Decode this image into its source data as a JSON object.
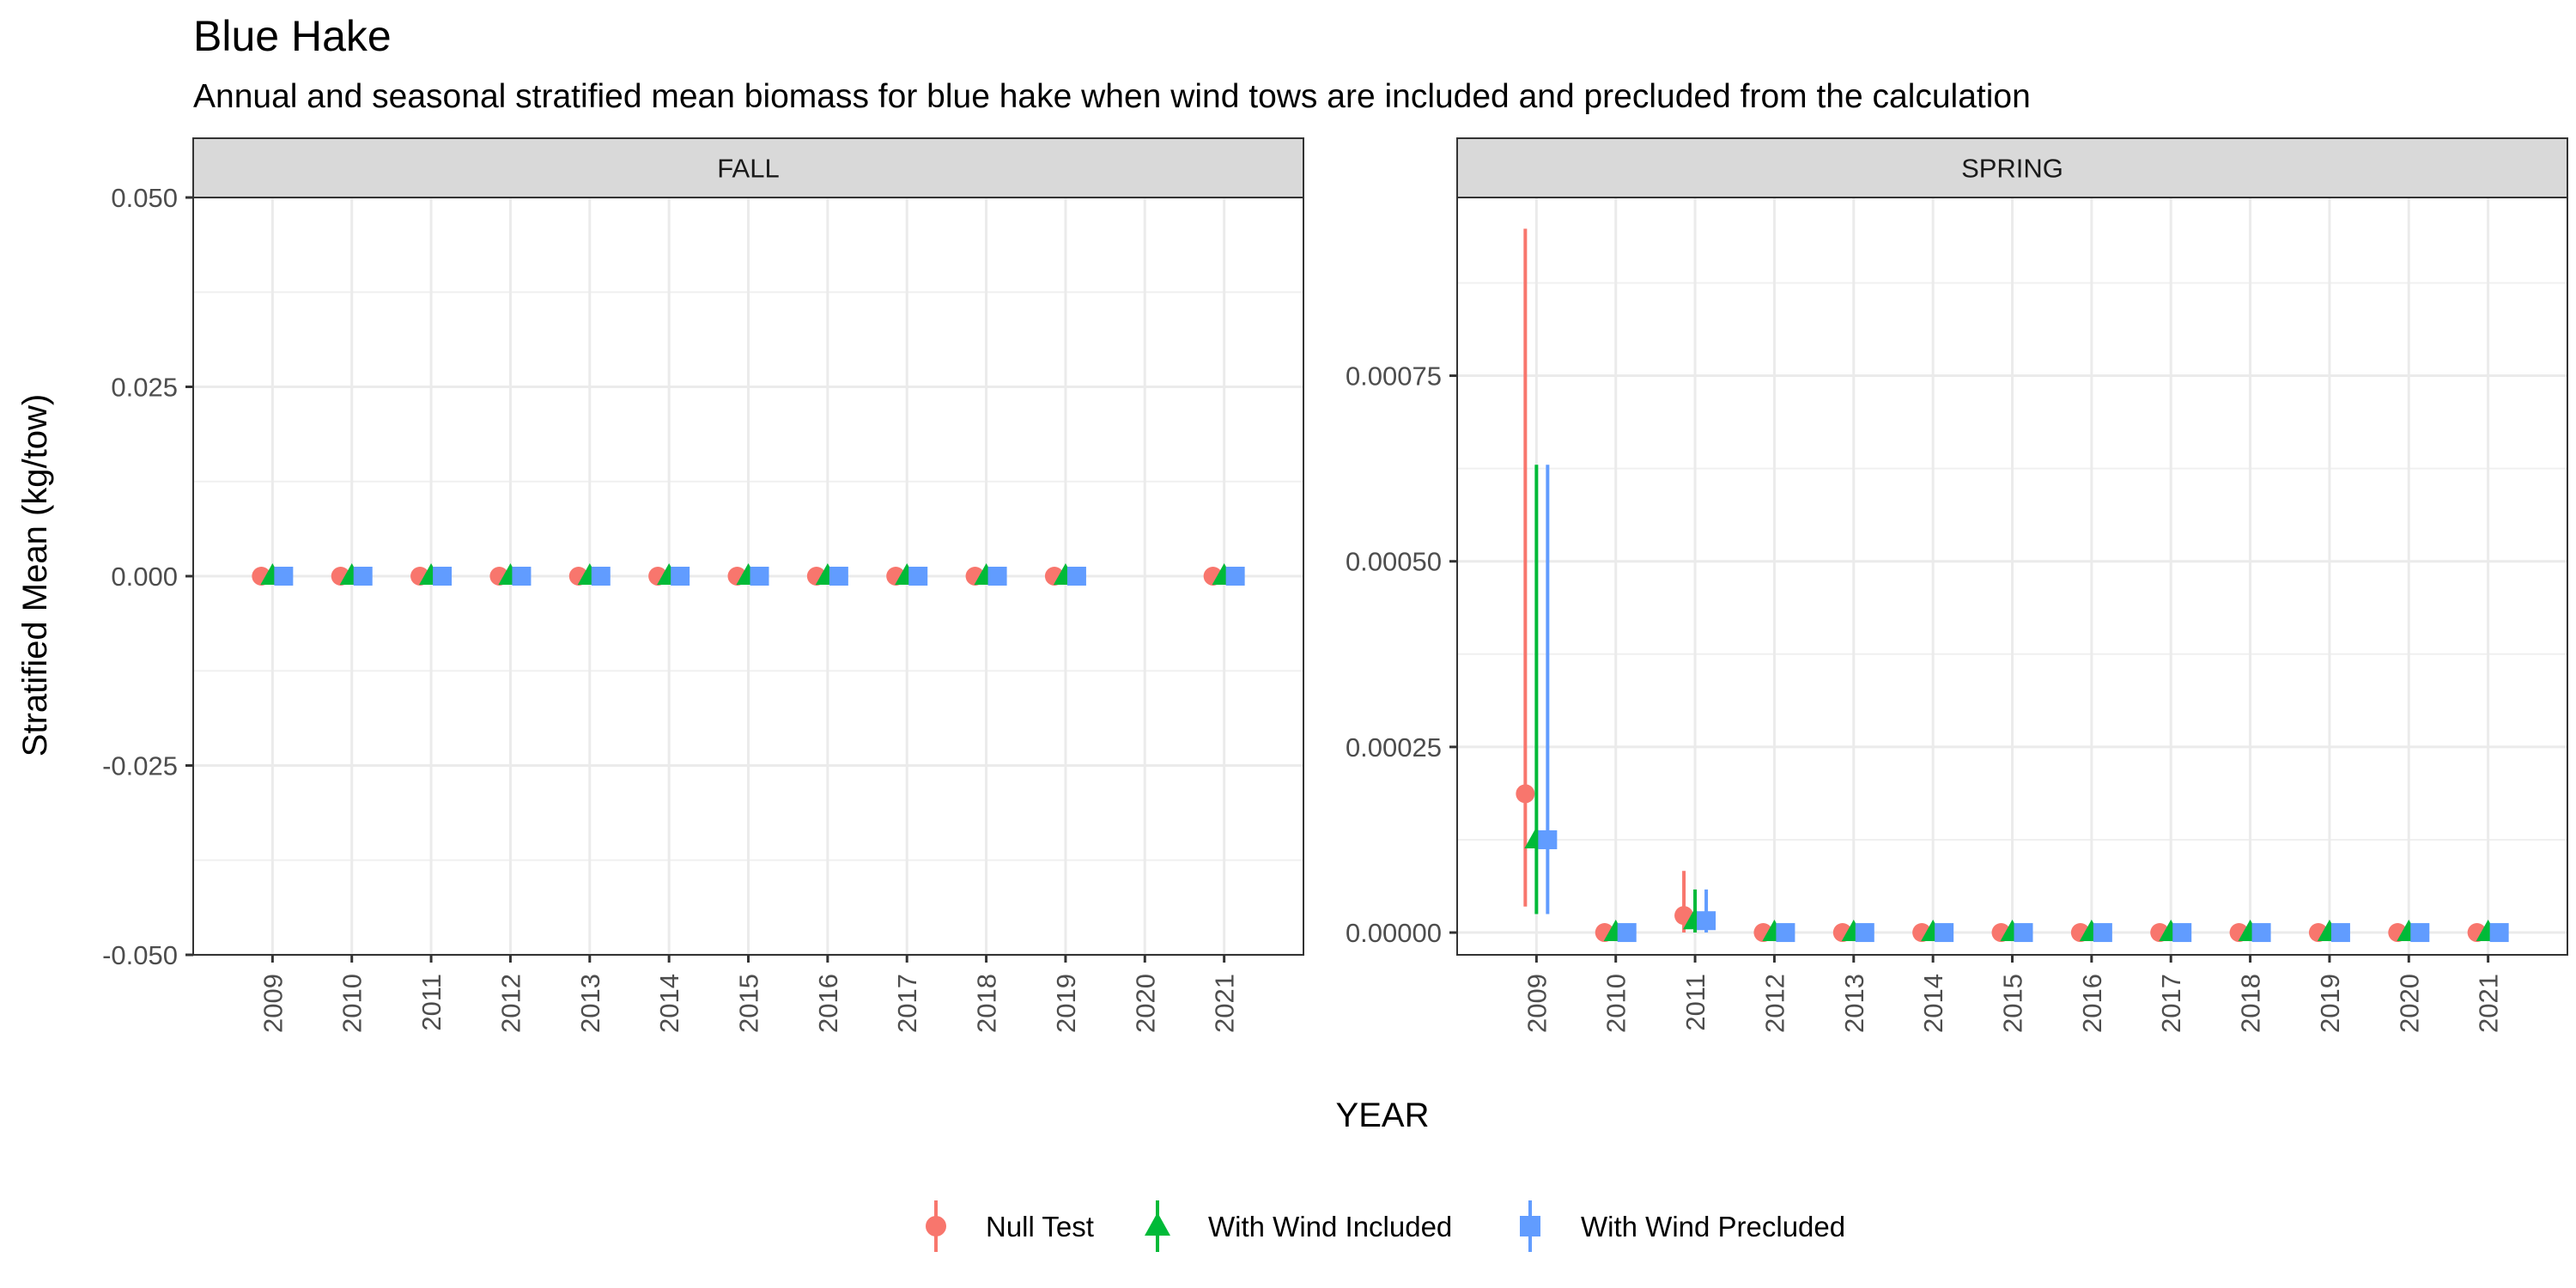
{
  "chart_data": {
    "type": "scatter",
    "title": "Blue Hake",
    "subtitle": "Annual and seasonal stratified mean biomass for blue hake when wind tows are included and precluded from the calculation",
    "xlabel": "YEAR",
    "ylabel": "Stratified Mean (kg/tow)",
    "legend_position": "bottom",
    "grid": true,
    "series": [
      {
        "name": "Null Test",
        "color": "#F8766D",
        "shape": "circle"
      },
      {
        "name": "With Wind Included",
        "color": "#00BA38",
        "shape": "triangle"
      },
      {
        "name": "With Wind Precluded",
        "color": "#619CFF",
        "shape": "square"
      }
    ],
    "panels": [
      {
        "label": "FALL",
        "years": [
          "2009",
          "2010",
          "2011",
          "2012",
          "2013",
          "2014",
          "2015",
          "2016",
          "2017",
          "2018",
          "2019",
          "2020",
          "2021"
        ],
        "ylim": [
          -0.05,
          0.05
        ],
        "yticks": [
          -0.05,
          -0.025,
          0,
          0.025,
          0.05
        ],
        "ytick_labels": [
          "-0.050",
          "-0.025",
          "0.000",
          "0.025",
          "0.050"
        ],
        "points": [
          {
            "year": "2009",
            "series": 0,
            "y": 0,
            "lo": 0,
            "hi": 0
          },
          {
            "year": "2009",
            "series": 1,
            "y": 0,
            "lo": 0,
            "hi": 0
          },
          {
            "year": "2009",
            "series": 2,
            "y": 0,
            "lo": 0,
            "hi": 0
          },
          {
            "year": "2010",
            "series": 0,
            "y": 0,
            "lo": 0,
            "hi": 0
          },
          {
            "year": "2010",
            "series": 1,
            "y": 0,
            "lo": 0,
            "hi": 0
          },
          {
            "year": "2010",
            "series": 2,
            "y": 0,
            "lo": 0,
            "hi": 0
          },
          {
            "year": "2011",
            "series": 0,
            "y": 0,
            "lo": 0,
            "hi": 0
          },
          {
            "year": "2011",
            "series": 1,
            "y": 0,
            "lo": 0,
            "hi": 0
          },
          {
            "year": "2011",
            "series": 2,
            "y": 0,
            "lo": 0,
            "hi": 0
          },
          {
            "year": "2012",
            "series": 0,
            "y": 0,
            "lo": 0,
            "hi": 0
          },
          {
            "year": "2012",
            "series": 1,
            "y": 0,
            "lo": 0,
            "hi": 0
          },
          {
            "year": "2012",
            "series": 2,
            "y": 0,
            "lo": 0,
            "hi": 0
          },
          {
            "year": "2013",
            "series": 0,
            "y": 0,
            "lo": 0,
            "hi": 0
          },
          {
            "year": "2013",
            "series": 1,
            "y": 0,
            "lo": 0,
            "hi": 0
          },
          {
            "year": "2013",
            "series": 2,
            "y": 0,
            "lo": 0,
            "hi": 0
          },
          {
            "year": "2014",
            "series": 0,
            "y": 0,
            "lo": 0,
            "hi": 0
          },
          {
            "year": "2014",
            "series": 1,
            "y": 0,
            "lo": 0,
            "hi": 0
          },
          {
            "year": "2014",
            "series": 2,
            "y": 0,
            "lo": 0,
            "hi": 0
          },
          {
            "year": "2015",
            "series": 0,
            "y": 0,
            "lo": 0,
            "hi": 0
          },
          {
            "year": "2015",
            "series": 1,
            "y": 0,
            "lo": 0,
            "hi": 0
          },
          {
            "year": "2015",
            "series": 2,
            "y": 0,
            "lo": 0,
            "hi": 0
          },
          {
            "year": "2016",
            "series": 0,
            "y": 0,
            "lo": 0,
            "hi": 0
          },
          {
            "year": "2016",
            "series": 1,
            "y": 0,
            "lo": 0,
            "hi": 0
          },
          {
            "year": "2016",
            "series": 2,
            "y": 0,
            "lo": 0,
            "hi": 0
          },
          {
            "year": "2017",
            "series": 0,
            "y": 0,
            "lo": 0,
            "hi": 0
          },
          {
            "year": "2017",
            "series": 1,
            "y": 0,
            "lo": 0,
            "hi": 0
          },
          {
            "year": "2017",
            "series": 2,
            "y": 0,
            "lo": 0,
            "hi": 0
          },
          {
            "year": "2018",
            "series": 0,
            "y": 0,
            "lo": 0,
            "hi": 0
          },
          {
            "year": "2018",
            "series": 1,
            "y": 0,
            "lo": 0,
            "hi": 0
          },
          {
            "year": "2018",
            "series": 2,
            "y": 0,
            "lo": 0,
            "hi": 0
          },
          {
            "year": "2019",
            "series": 0,
            "y": 0,
            "lo": 0,
            "hi": 0
          },
          {
            "year": "2019",
            "series": 1,
            "y": 0,
            "lo": 0,
            "hi": 0
          },
          {
            "year": "2019",
            "series": 2,
            "y": 0,
            "lo": 0,
            "hi": 0
          },
          {
            "year": "2021",
            "series": 0,
            "y": 0,
            "lo": 0,
            "hi": 0
          },
          {
            "year": "2021",
            "series": 1,
            "y": 0,
            "lo": 0,
            "hi": 0
          },
          {
            "year": "2021",
            "series": 2,
            "y": 0,
            "lo": 0,
            "hi": 0
          }
        ]
      },
      {
        "label": "SPRING",
        "years": [
          "2009",
          "2010",
          "2011",
          "2012",
          "2013",
          "2014",
          "2015",
          "2016",
          "2017",
          "2018",
          "2019",
          "2020",
          "2021"
        ],
        "ylim": [
          -3e-05,
          0.00099
        ],
        "yticks": [
          0,
          0.00025,
          0.0005,
          0.00075
        ],
        "ytick_labels": [
          "0.00000",
          "0.00025",
          "0.00050",
          "0.00075"
        ],
        "points": [
          {
            "year": "2009",
            "series": 0,
            "y": 0.000187,
            "lo": 3.5e-05,
            "hi": 0.000948
          },
          {
            "year": "2009",
            "series": 1,
            "y": 0.000125,
            "lo": 2.5e-05,
            "hi": 0.00063
          },
          {
            "year": "2009",
            "series": 2,
            "y": 0.000125,
            "lo": 2.5e-05,
            "hi": 0.00063
          },
          {
            "year": "2010",
            "series": 0,
            "y": 0,
            "lo": 0,
            "hi": 0
          },
          {
            "year": "2010",
            "series": 1,
            "y": 0,
            "lo": 0,
            "hi": 0
          },
          {
            "year": "2010",
            "series": 2,
            "y": 0,
            "lo": 0,
            "hi": 0
          },
          {
            "year": "2011",
            "series": 0,
            "y": 2.3e-05,
            "lo": 0,
            "hi": 8.3e-05
          },
          {
            "year": "2011",
            "series": 1,
            "y": 1.6e-05,
            "lo": 0,
            "hi": 5.8e-05
          },
          {
            "year": "2011",
            "series": 2,
            "y": 1.6e-05,
            "lo": 0,
            "hi": 5.8e-05
          },
          {
            "year": "2012",
            "series": 0,
            "y": 0,
            "lo": 0,
            "hi": 0
          },
          {
            "year": "2012",
            "series": 1,
            "y": 0,
            "lo": 0,
            "hi": 0
          },
          {
            "year": "2012",
            "series": 2,
            "y": 0,
            "lo": 0,
            "hi": 0
          },
          {
            "year": "2013",
            "series": 0,
            "y": 0,
            "lo": 0,
            "hi": 0
          },
          {
            "year": "2013",
            "series": 1,
            "y": 0,
            "lo": 0,
            "hi": 0
          },
          {
            "year": "2013",
            "series": 2,
            "y": 0,
            "lo": 0,
            "hi": 0
          },
          {
            "year": "2014",
            "series": 0,
            "y": 0,
            "lo": 0,
            "hi": 0
          },
          {
            "year": "2014",
            "series": 1,
            "y": 0,
            "lo": 0,
            "hi": 0
          },
          {
            "year": "2014",
            "series": 2,
            "y": 0,
            "lo": 0,
            "hi": 0
          },
          {
            "year": "2015",
            "series": 0,
            "y": 0,
            "lo": 0,
            "hi": 0
          },
          {
            "year": "2015",
            "series": 1,
            "y": 0,
            "lo": 0,
            "hi": 0
          },
          {
            "year": "2015",
            "series": 2,
            "y": 0,
            "lo": 0,
            "hi": 0
          },
          {
            "year": "2016",
            "series": 0,
            "y": 0,
            "lo": 0,
            "hi": 0
          },
          {
            "year": "2016",
            "series": 1,
            "y": 0,
            "lo": 0,
            "hi": 0
          },
          {
            "year": "2016",
            "series": 2,
            "y": 0,
            "lo": 0,
            "hi": 0
          },
          {
            "year": "2017",
            "series": 0,
            "y": 0,
            "lo": 0,
            "hi": 0
          },
          {
            "year": "2017",
            "series": 1,
            "y": 0,
            "lo": 0,
            "hi": 0
          },
          {
            "year": "2017",
            "series": 2,
            "y": 0,
            "lo": 0,
            "hi": 0
          },
          {
            "year": "2018",
            "series": 0,
            "y": 0,
            "lo": 0,
            "hi": 0
          },
          {
            "year": "2018",
            "series": 1,
            "y": 0,
            "lo": 0,
            "hi": 0
          },
          {
            "year": "2018",
            "series": 2,
            "y": 0,
            "lo": 0,
            "hi": 0
          },
          {
            "year": "2019",
            "series": 0,
            "y": 0,
            "lo": 0,
            "hi": 0
          },
          {
            "year": "2019",
            "series": 1,
            "y": 0,
            "lo": 0,
            "hi": 0
          },
          {
            "year": "2019",
            "series": 2,
            "y": 0,
            "lo": 0,
            "hi": 0
          },
          {
            "year": "2020",
            "series": 0,
            "y": 0,
            "lo": 0,
            "hi": 0
          },
          {
            "year": "2020",
            "series": 1,
            "y": 0,
            "lo": 0,
            "hi": 0
          },
          {
            "year": "2020",
            "series": 2,
            "y": 0,
            "lo": 0,
            "hi": 0
          },
          {
            "year": "2021",
            "series": 0,
            "y": 0,
            "lo": 0,
            "hi": 0
          },
          {
            "year": "2021",
            "series": 1,
            "y": 0,
            "lo": 0,
            "hi": 0
          },
          {
            "year": "2021",
            "series": 2,
            "y": 0,
            "lo": 0,
            "hi": 0
          }
        ]
      }
    ]
  }
}
